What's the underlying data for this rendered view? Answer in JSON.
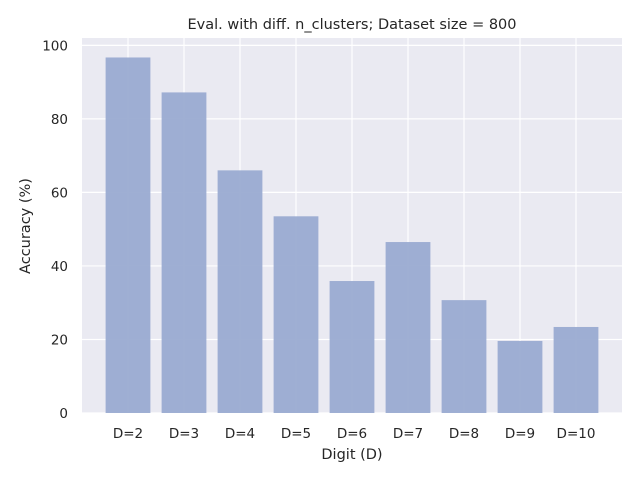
{
  "chart_data": {
    "type": "bar",
    "title": "Eval. with diff. n_clusters; Dataset size = 800",
    "xlabel": "Digit (D)",
    "ylabel": "Accuracy (%)",
    "categories": [
      "D=2",
      "D=3",
      "D=4",
      "D=5",
      "D=6",
      "D=7",
      "D=8",
      "D=9",
      "D=10"
    ],
    "values": [
      96.7,
      87.2,
      66.0,
      53.5,
      35.9,
      46.5,
      30.7,
      19.6,
      23.4
    ],
    "ylim": [
      0,
      102
    ],
    "yticks": [
      0,
      20,
      40,
      60,
      80,
      100
    ],
    "grid": true,
    "colors": {
      "background": "#eaeaf2",
      "bar": "#9aabd1",
      "grid": "#ffffff"
    }
  }
}
